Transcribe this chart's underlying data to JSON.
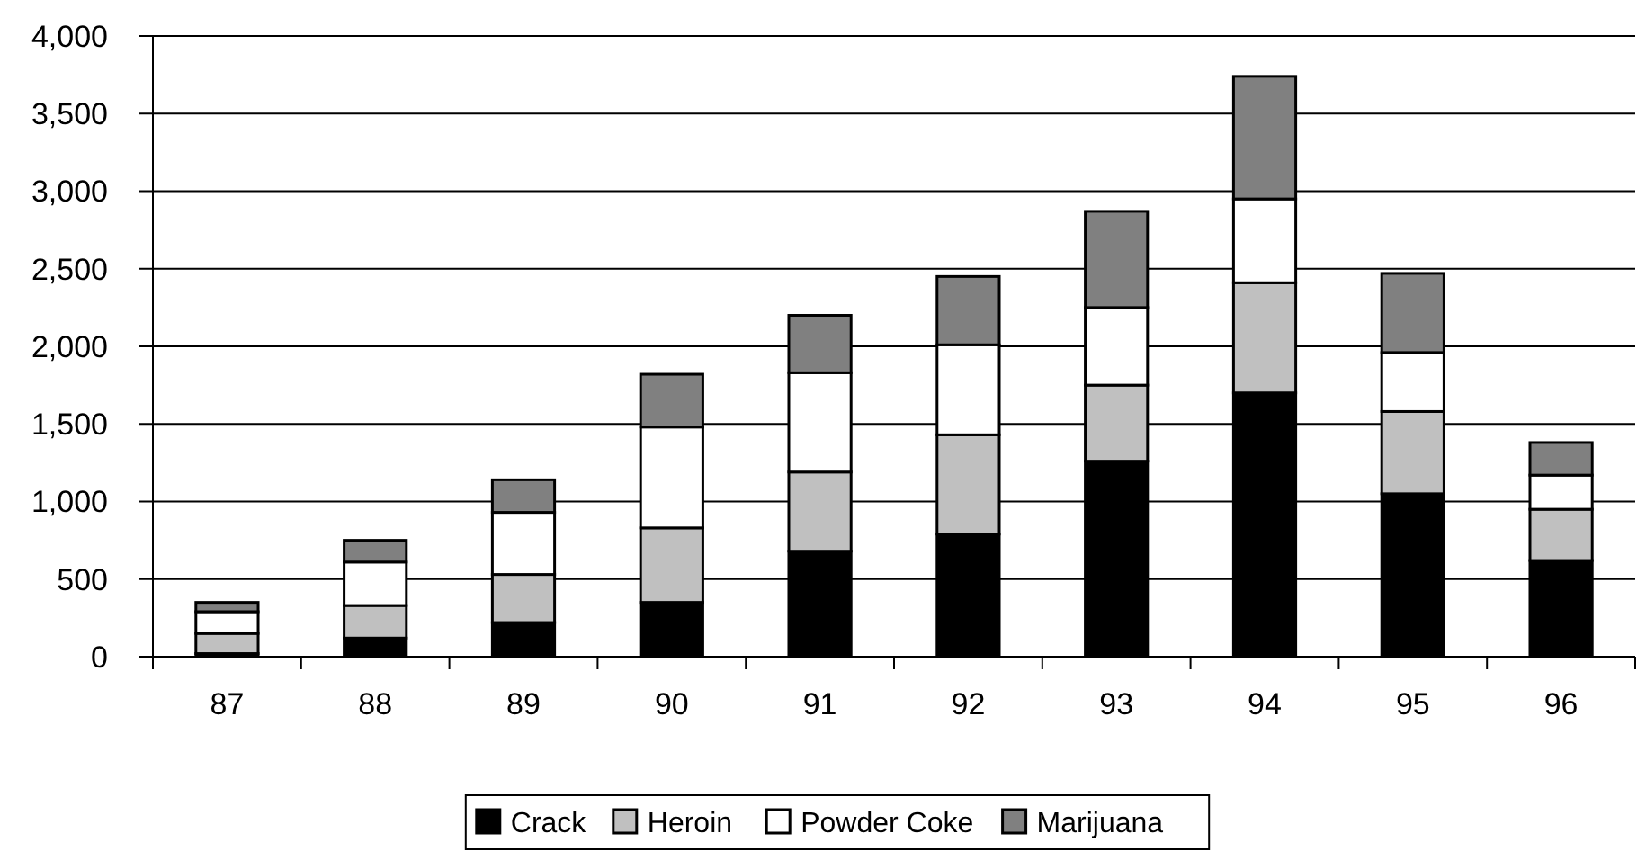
{
  "chart_data": {
    "type": "bar",
    "stacked": true,
    "categories": [
      "87",
      "88",
      "89",
      "90",
      "91",
      "92",
      "93",
      "94",
      "95",
      "96"
    ],
    "series": [
      {
        "name": "Crack",
        "color": "#000000",
        "values": [
          20,
          120,
          220,
          350,
          680,
          790,
          1260,
          1700,
          1050,
          620
        ]
      },
      {
        "name": "Heroin",
        "color": "#c0c0c0",
        "values": [
          130,
          210,
          310,
          480,
          510,
          640,
          490,
          710,
          530,
          330
        ]
      },
      {
        "name": "Powder Coke",
        "color": "#ffffff",
        "values": [
          140,
          280,
          400,
          650,
          640,
          580,
          500,
          540,
          380,
          220
        ]
      },
      {
        "name": "Marijuana",
        "color": "#808080",
        "values": [
          60,
          140,
          210,
          340,
          370,
          440,
          620,
          790,
          510,
          210
        ]
      }
    ],
    "ylim": [
      0,
      4000
    ],
    "yticks": [
      0,
      {
        "value": 500,
        "label": "500"
      },
      {
        "value": 1000,
        "label": "1,000"
      },
      {
        "value": 1500,
        "label": "1,500"
      },
      {
        "value": 2000,
        "label": "2,000"
      },
      {
        "value": 2500,
        "label": "2,500"
      },
      {
        "value": 3000,
        "label": "3,000"
      },
      {
        "value": 3500,
        "label": "3,500"
      },
      {
        "value": 4000,
        "label": "4,000"
      }
    ],
    "grid": "y",
    "legend": "bottom"
  }
}
